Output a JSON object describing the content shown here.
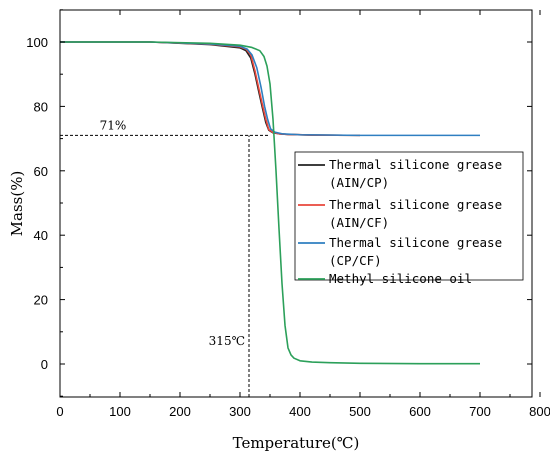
{
  "chart_data": {
    "type": "line",
    "xlabel": "Temperature(℃)",
    "ylabel": "Mass(%)",
    "xlim": [
      0,
      800
    ],
    "ylim": [
      -10,
      110
    ],
    "xticks": [
      0,
      100,
      200,
      300,
      400,
      500,
      600,
      700,
      800
    ],
    "yticks": [
      0,
      20,
      40,
      60,
      80,
      100
    ],
    "grid": false,
    "legend_position": "right",
    "annotations": [
      {
        "id": "mass71",
        "text": "71%",
        "type": "hline",
        "value": 71,
        "x_end": 350
      },
      {
        "id": "t315",
        "text": "315℃",
        "type": "vline",
        "value": 315,
        "y_end": 71
      }
    ],
    "series": [
      {
        "name": "Thermal silicone grease (AIN/CP)",
        "color": "#222222",
        "x": [
          0,
          150,
          250,
          300,
          310,
          318,
          325,
          332,
          338,
          343,
          348,
          355,
          365,
          380,
          420,
          500
        ],
        "y": [
          100,
          100,
          99.2,
          98.2,
          97.3,
          95,
          90,
          84,
          79,
          75,
          72.6,
          71.8,
          71.5,
          71.3,
          71.1,
          71.0
        ]
      },
      {
        "name": "Thermal silicone grease (AIN/CF)",
        "color": "#e8473b",
        "x": [
          0,
          150,
          250,
          300,
          310,
          318,
          325,
          332,
          338,
          343,
          348,
          355,
          365,
          380,
          420,
          500
        ],
        "y": [
          100,
          100,
          99.3,
          98.5,
          97.8,
          96,
          91,
          85,
          80,
          76,
          72.8,
          71.9,
          71.5,
          71.3,
          71.1,
          71.0
        ]
      },
      {
        "name": "Thermal silicone grease (CP/CF)",
        "color": "#2f7fc1",
        "x": [
          0,
          150,
          250,
          300,
          312,
          320,
          328,
          335,
          341,
          346,
          351,
          358,
          370,
          400,
          500,
          600,
          700
        ],
        "y": [
          100,
          100,
          99.4,
          98.7,
          97.8,
          96,
          92,
          86,
          80,
          76,
          73,
          72,
          71.5,
          71.2,
          71.0,
          71.0,
          71.0
        ]
      },
      {
        "name": "Methyl silicone oil",
        "color": "#2ca05a",
        "x": [
          0,
          150,
          250,
          300,
          320,
          333,
          340,
          345,
          350,
          355,
          360,
          365,
          370,
          375,
          380,
          385,
          390,
          400,
          420,
          450,
          500,
          600,
          700
        ],
        "y": [
          100,
          100,
          99.6,
          99,
          98.3,
          97.3,
          95.5,
          92.5,
          87,
          76,
          60,
          42,
          25,
          12,
          5,
          2.8,
          1.8,
          1.0,
          0.6,
          0.4,
          0.2,
          0.1,
          0.1
        ]
      }
    ]
  }
}
